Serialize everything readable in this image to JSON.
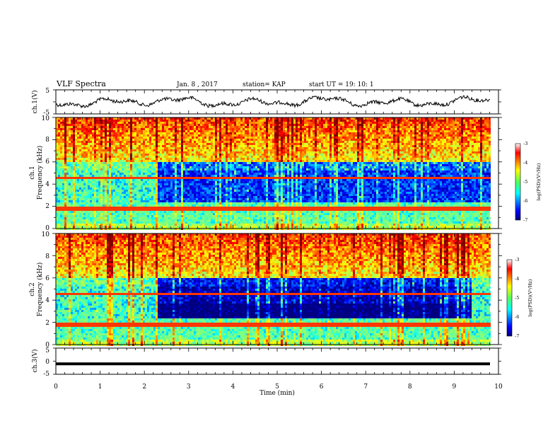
{
  "header": {
    "title": "VLF Spectra",
    "date": "Jan. 8 , 2017",
    "station": "station= KAP",
    "start_ut": "start UT =   19: 10: 1"
  },
  "chart_data": [
    {
      "type": "line",
      "name": "ch.1 waveform",
      "ylabel": "ch.1(V)",
      "ylim": [
        -5,
        5
      ],
      "yticks": [
        "5",
        "-5"
      ],
      "xlim": [
        0,
        10
      ],
      "color": "#000000"
    },
    {
      "type": "heatmap",
      "name": "ch.1 spectrogram",
      "ylabel_top": "ch.1",
      "ylabel": "Frequency (kHz)",
      "ylim": [
        0,
        10
      ],
      "yticks": [
        "0",
        "2",
        "4",
        "6",
        "8",
        "10"
      ],
      "xlim": [
        0,
        10
      ],
      "colorbar": {
        "label": "log(PSD)(V²/Hz)",
        "range": [
          -7,
          -3
        ],
        "ticks": [
          "-3",
          "-4",
          "-5",
          "-6",
          "-7"
        ]
      }
    },
    {
      "type": "heatmap",
      "name": "ch.2 spectrogram",
      "ylabel_top": "ch.2",
      "ylabel": "Frequency (kHz)",
      "ylim": [
        0,
        10
      ],
      "yticks": [
        "0",
        "2",
        "4",
        "6",
        "8",
        "10"
      ],
      "xlim": [
        0,
        10
      ],
      "colorbar": {
        "label": "log(PSD)(V²/Hz)",
        "range": [
          -7,
          -3
        ],
        "ticks": [
          "-3",
          "-4",
          "-5",
          "-6",
          "-7"
        ]
      }
    },
    {
      "type": "line",
      "name": "ch.3 waveform",
      "ylabel": "ch.3(V)",
      "ylim": [
        -5,
        5
      ],
      "yticks": [
        "5",
        "0",
        "-5"
      ],
      "xlim": [
        0,
        10
      ],
      "level": -1,
      "color": "#000000"
    }
  ],
  "xaxis": {
    "label": "Time (min)",
    "ticks": [
      "0",
      "1",
      "2",
      "3",
      "4",
      "5",
      "6",
      "7",
      "8",
      "9",
      "10"
    ]
  }
}
